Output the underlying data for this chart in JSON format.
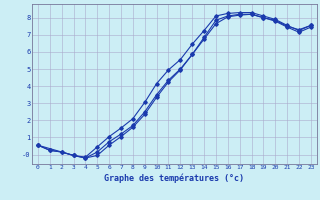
{
  "xlabel": "Graphe des températures (°c)",
  "background_color": "#cceef5",
  "line_color": "#1a3aad",
  "grid_color": "#aaaacc",
  "xlim": [
    -0.5,
    23.5
  ],
  "ylim": [
    -0.55,
    8.8
  ],
  "xticks": [
    0,
    1,
    2,
    3,
    4,
    5,
    6,
    7,
    8,
    9,
    10,
    11,
    12,
    13,
    14,
    15,
    16,
    17,
    18,
    19,
    20,
    21,
    22,
    23
  ],
  "yticks": [
    0,
    1,
    2,
    3,
    4,
    5,
    6,
    7,
    8
  ],
  "ytick_labels": [
    "-0",
    "1",
    "2",
    "3",
    "4",
    "5",
    "6",
    "7",
    "8"
  ],
  "line1_x": [
    0,
    1,
    2,
    3,
    4,
    5,
    6,
    7,
    8,
    9,
    10,
    11,
    12,
    13,
    14,
    15,
    16,
    17,
    18,
    19,
    20,
    21,
    22,
    23
  ],
  "line1_y": [
    0.55,
    0.25,
    0.15,
    -0.05,
    -0.15,
    0.45,
    1.05,
    1.55,
    2.1,
    3.05,
    4.15,
    4.95,
    5.55,
    6.45,
    7.25,
    8.1,
    8.25,
    8.3,
    8.3,
    8.1,
    7.9,
    7.55,
    7.25,
    7.55
  ],
  "line2_x": [
    0,
    1,
    2,
    3,
    4,
    5,
    6,
    7,
    8,
    9,
    10,
    11,
    12,
    13,
    14,
    15,
    16,
    17,
    18,
    19,
    20,
    21,
    22,
    23
  ],
  "line2_y": [
    0.55,
    0.25,
    0.15,
    -0.05,
    -0.2,
    0.15,
    0.75,
    1.2,
    1.7,
    2.5,
    3.5,
    4.35,
    5.0,
    5.85,
    6.75,
    7.65,
    8.05,
    8.15,
    8.2,
    8.0,
    7.8,
    7.45,
    7.15,
    7.45
  ],
  "line3_x": [
    0,
    3,
    4,
    5,
    6,
    7,
    8,
    9,
    10,
    11,
    12,
    13,
    14,
    15,
    16,
    17,
    18,
    19,
    20,
    21,
    22,
    23
  ],
  "line3_y": [
    0.55,
    -0.05,
    -0.2,
    -0.05,
    0.55,
    1.05,
    1.6,
    2.35,
    3.35,
    4.25,
    4.95,
    5.85,
    6.85,
    7.85,
    8.1,
    8.2,
    8.2,
    8.0,
    7.85,
    7.5,
    7.3,
    7.55
  ]
}
